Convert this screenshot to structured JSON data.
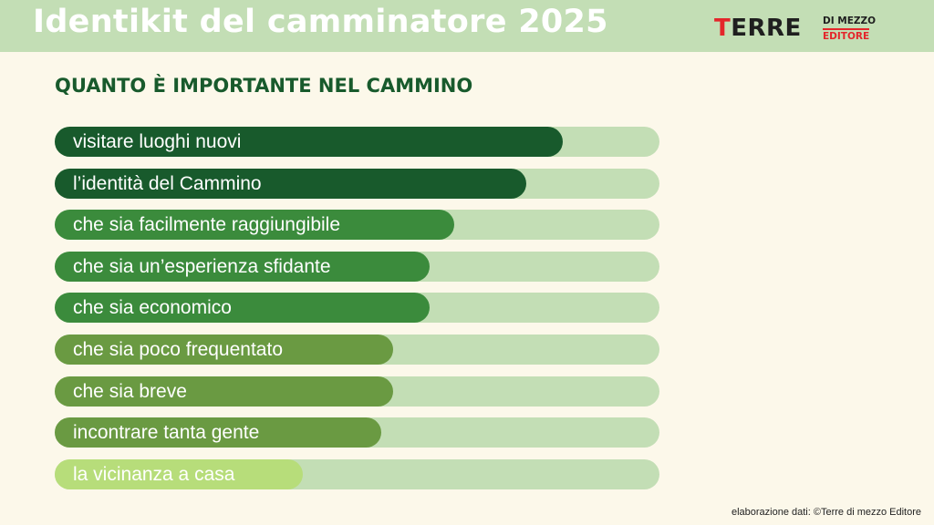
{
  "header": {
    "title": "Identikit del camminatore 2025",
    "logo": {
      "word": "TERRE",
      "line1": "DI MEZZO",
      "line2": "EDITORE"
    }
  },
  "chart_data": {
    "type": "bar",
    "subtitle": "QUANTO È IMPORTANTE NEL CAMMINO",
    "categories": [
      "visitare luoghi nuovi",
      "l’identità del Cammino",
      "che sia facilmente raggiungibile",
      "che sia un’esperienza sfidante",
      "che sia economico",
      "che sia poco frequentato",
      "che sia breve",
      "incontrare tanta gente",
      "la vicinanza a casa"
    ],
    "values": [
      84,
      78,
      66,
      62,
      62,
      56,
      56,
      54,
      41
    ],
    "xlim": [
      0,
      100
    ],
    "colors": [
      "#185a2c",
      "#185a2c",
      "#3b8b3c",
      "#3b8b3c",
      "#3b8b3c",
      "#6a9a42",
      "#6a9a42",
      "#6a9a42",
      "#b7dd7a"
    ],
    "track_color": "#c3deb5",
    "grid": false,
    "legend": "none"
  },
  "footer": {
    "source": "elaborazione dati: ©Terre di mezzo Editore"
  }
}
